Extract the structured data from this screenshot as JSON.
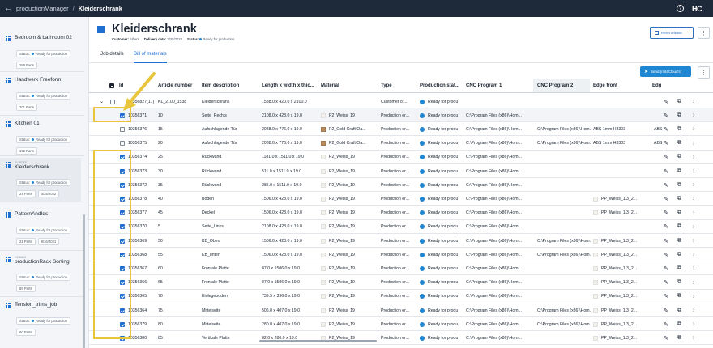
{
  "topbar": {
    "crumb": "productionManager",
    "sep": "/",
    "current": "Kleiderschrank",
    "logo": "HC"
  },
  "sidebar": {
    "cards": [
      {
        "pre": "",
        "title": "Bedroom & bathroom 02",
        "status_label": "Status:",
        "status": "Ready for production",
        "parts": "288 Parts",
        "date": ""
      },
      {
        "pre": "",
        "title": "Handwerk Freeform",
        "status_label": "Status:",
        "status": "Ready for production",
        "parts": "201 Parts",
        "date": ""
      },
      {
        "pre": "",
        "title": "Kitchen 01",
        "status_label": "Status:",
        "status": "Ready for production",
        "parts": "152 Parts",
        "date": ""
      },
      {
        "pre": "ALBERS",
        "title": "Kleiderschrank",
        "status_label": "Status:",
        "status": "Ready for production",
        "parts": "24 Parts",
        "date": "3/25/2022"
      },
      {
        "pre": "",
        "title": "PatternAndIds",
        "status_label": "Status:",
        "status": "Ready for production",
        "parts": "21 Parts",
        "date": "9/16/2021"
      },
      {
        "pre": "HOMAG",
        "title": "productionRack Sorting",
        "status_label": "Status:",
        "status": "Ready for production",
        "parts": "89 Parts",
        "date": ""
      },
      {
        "pre": "",
        "title": "Tension_trims_job",
        "status_label": "Status:",
        "status": "Ready for production",
        "parts": "60 Parts",
        "date": ""
      }
    ]
  },
  "header": {
    "title": "Kleiderschrank",
    "customer_label": "Customer:",
    "customer": "Albers",
    "delivery_label": "Delivery date:",
    "delivery": "3/25/2022",
    "status_label": "Status:",
    "status": "Ready for production",
    "reset_label": "Reset release",
    "more": "⋮"
  },
  "tabs": [
    {
      "label": "Job details"
    },
    {
      "label": "Bill of materials"
    }
  ],
  "send_button": "Send (mit4Cloud's)",
  "table": {
    "columns": [
      "Id",
      "Article number",
      "Item description",
      "Length x width x thic...",
      "Material",
      "Type",
      "Production stat...",
      "CNC Program 1",
      "CNC Program 2",
      "Edge front",
      "Edg"
    ],
    "rows": [
      {
        "id": "10356827(17)",
        "article": "KL_2100_1538",
        "desc": "Kleiderschrank",
        "dims": "1538.0 x 420.0 x 2100.0",
        "material": "",
        "swatch": "none",
        "type": "Customer or...",
        "status": "Ready for produ",
        "cnc1": "",
        "cnc2": "",
        "edge": "",
        "edge2": "",
        "checked": false,
        "group": true
      },
      {
        "id": "10356371",
        "article": "10",
        "desc": "Seite_Rechts",
        "dims": "2108.0 x 428.0 x 19.0",
        "material": "P2_Weiss_19",
        "swatch": "white",
        "type": "Production or...",
        "status": "Ready for produ",
        "cnc1": "C:\\Program Files (x86)\\Hom...",
        "cnc2": "",
        "edge": "",
        "edge2": "",
        "checked": true,
        "group": false
      },
      {
        "id": "10356376",
        "article": "15",
        "desc": "Aufschlagende Tür",
        "dims": "2088.0 x 776.0 x 19.0",
        "material": "P2_Gold Craft Oa...",
        "swatch": "oak",
        "type": "Production or...",
        "status": "Ready for produ",
        "cnc1": "C:\\Program Files (x86)\\Hom...",
        "cnc2": "C:\\Program Files (x86)\\Hom...",
        "edge": "ABS 1mm H3303",
        "edge2": "ABS",
        "checked": false,
        "group": false
      },
      {
        "id": "10356375",
        "article": "20",
        "desc": "Aufschlagende Tür",
        "dims": "2088.0 x 776.0 x 19.0",
        "material": "P2_Gold Craft Oa...",
        "swatch": "oak",
        "type": "Production or...",
        "status": "Ready for produ",
        "cnc1": "C:\\Program Files (x86)\\Hom...",
        "cnc2": "C:\\Program Files (x86)\\Hom...",
        "edge": "ABS 1mm H3303",
        "edge2": "ABS",
        "checked": false,
        "group": false
      },
      {
        "id": "10356374",
        "article": "25",
        "desc": "Rückwand",
        "dims": "1181.0 x 1511.0 x 19.0",
        "material": "P2_Weiss_19",
        "swatch": "white",
        "type": "Production or...",
        "status": "Ready for produ",
        "cnc1": "C:\\Program Files (x86)\\Hom...",
        "cnc2": "",
        "edge": "",
        "edge2": "",
        "checked": true,
        "group": false
      },
      {
        "id": "10356373",
        "article": "30",
        "desc": "Rückwand",
        "dims": "511.0 x 1511.0 x 19.0",
        "material": "P2_Weiss_19",
        "swatch": "white",
        "type": "Production or...",
        "status": "Ready for produ",
        "cnc1": "C:\\Program Files (x86)\\Hom...",
        "cnc2": "",
        "edge": "",
        "edge2": "",
        "checked": true,
        "group": false
      },
      {
        "id": "10356372",
        "article": "35",
        "desc": "Rückwand",
        "dims": "285.0 x 1511.0 x 19.0",
        "material": "P2_Weiss_19",
        "swatch": "white",
        "type": "Production or...",
        "status": "Ready for produ",
        "cnc1": "C:\\Program Files (x86)\\Hom...",
        "cnc2": "",
        "edge": "",
        "edge2": "",
        "checked": true,
        "group": false
      },
      {
        "id": "10356378",
        "article": "40",
        "desc": "Boden",
        "dims": "1506.0 x 428.0 x 19.0",
        "material": "P2_Weiss_19",
        "swatch": "white",
        "type": "Production or...",
        "status": "Ready for produ",
        "cnc1": "C:\\Program Files (x86)\\Hom...",
        "cnc2": "",
        "edge": "PP_Weiss_1.3_2...",
        "edge2": "",
        "checked": true,
        "group": false
      },
      {
        "id": "10356377",
        "article": "45",
        "desc": "Deckel",
        "dims": "1506.0 x 428.0 x 19.0",
        "material": "P2_Weiss_19",
        "swatch": "white",
        "type": "Production or...",
        "status": "Ready for produ",
        "cnc1": "C:\\Program Files (x86)\\Hom...",
        "cnc2": "",
        "edge": "PP_Weiss_1.3_2...",
        "edge2": "",
        "checked": true,
        "group": false
      },
      {
        "id": "10356370",
        "article": "5",
        "desc": "Seite_Links",
        "dims": "2108.0 x 428.0 x 19.0",
        "material": "P2_Weiss_19",
        "swatch": "white",
        "type": "Production or...",
        "status": "Ready for produ",
        "cnc1": "C:\\Program Files (x86)\\Hom...",
        "cnc2": "",
        "edge": "",
        "edge2": "",
        "checked": true,
        "group": false
      },
      {
        "id": "10356369",
        "article": "50",
        "desc": "KB_Oben",
        "dims": "1506.0 x 428.0 x 19.0",
        "material": "P2_Weiss_19",
        "swatch": "white",
        "type": "Production or...",
        "status": "Ready for produ",
        "cnc1": "C:\\Program Files (x86)\\Hom...",
        "cnc2": "C:\\Program Files (x86)\\Hom...",
        "edge": "PP_Weiss_1.3_2...",
        "edge2": "",
        "checked": true,
        "group": false
      },
      {
        "id": "10356368",
        "article": "55",
        "desc": "KB_unten",
        "dims": "1506.0 x 428.0 x 19.0",
        "material": "P2_Weiss_19",
        "swatch": "white",
        "type": "Production or...",
        "status": "Ready for produ",
        "cnc1": "C:\\Program Files (x86)\\Hom...",
        "cnc2": "C:\\Program Files (x86)\\Hom...",
        "edge": "PP_Weiss_1.3_2...",
        "edge2": "",
        "checked": true,
        "group": false
      },
      {
        "id": "10356367",
        "article": "60",
        "desc": "Frontale Platte",
        "dims": "87.0 x 1506.0 x 19.0",
        "material": "P2_Weiss_19",
        "swatch": "white",
        "type": "Production or...",
        "status": "Ready for produ",
        "cnc1": "C:\\Program Files (x86)\\Hom...",
        "cnc2": "",
        "edge": "PP_Weiss_1.3_2...",
        "edge2": "",
        "checked": true,
        "group": false
      },
      {
        "id": "10356366",
        "article": "65",
        "desc": "Frontale Platte",
        "dims": "87.0 x 1506.0 x 19.0",
        "material": "P2_Weiss_19",
        "swatch": "white",
        "type": "Production or...",
        "status": "Ready for produ",
        "cnc1": "C:\\Program Files (x86)\\Hom...",
        "cnc2": "",
        "edge": "PP_Weiss_1.3_2...",
        "edge2": "",
        "checked": true,
        "group": false
      },
      {
        "id": "10356365",
        "article": "70",
        "desc": "Einlegeboden",
        "dims": "739.5 x 396.0 x 19.0",
        "material": "P2_Weiss_19",
        "swatch": "white",
        "type": "Production or...",
        "status": "Ready for produ",
        "cnc1": "C:\\Program Files (x86)\\Hom...",
        "cnc2": "",
        "edge": "PP_Weiss_1.3_2...",
        "edge2": "",
        "checked": true,
        "group": false
      },
      {
        "id": "10356364",
        "article": "75",
        "desc": "Mittelseite",
        "dims": "506.0 x 407.0 x 19.0",
        "material": "P2_Weiss_19",
        "swatch": "white",
        "type": "Production or...",
        "status": "Ready for produ",
        "cnc1": "C:\\Program Files (x86)\\Hom...",
        "cnc2": "C:\\Program Files (x86)\\Hom...",
        "edge": "PP_Weiss_1.3_2...",
        "edge2": "",
        "checked": true,
        "group": false
      },
      {
        "id": "10356379",
        "article": "80",
        "desc": "Mittelseite",
        "dims": "280.0 x 407.0 x 19.0",
        "material": "P2_Weiss_19",
        "swatch": "white",
        "type": "Production or...",
        "status": "Ready for produ",
        "cnc1": "C:\\Program Files (x86)\\Hom...",
        "cnc2": "C:\\Program Files (x86)\\Hom...",
        "edge": "PP_Weiss_1.3_2...",
        "edge2": "",
        "checked": true,
        "group": false
      },
      {
        "id": "10356380",
        "article": "85",
        "desc": "Vertikale Platte",
        "dims": "82.0 x 280.0 x 19.0",
        "material": "P2_Weiss_19",
        "swatch": "white",
        "type": "Production or...",
        "status": "Ready for produ",
        "cnc1": "C:\\Program Files (x86)\\Hom...",
        "cnc2": "",
        "edge": "PP_Weiss_1.3_2...",
        "edge2": "",
        "checked": true,
        "group": false
      }
    ]
  },
  "icons": {
    "edit": "pencil-icon",
    "copy": "copy-icon",
    "open": "chevron-right-icon"
  },
  "colors": {
    "topbar": "#1e2a3a",
    "accent": "#1f86d1",
    "highlight": "#e8c53a"
  }
}
